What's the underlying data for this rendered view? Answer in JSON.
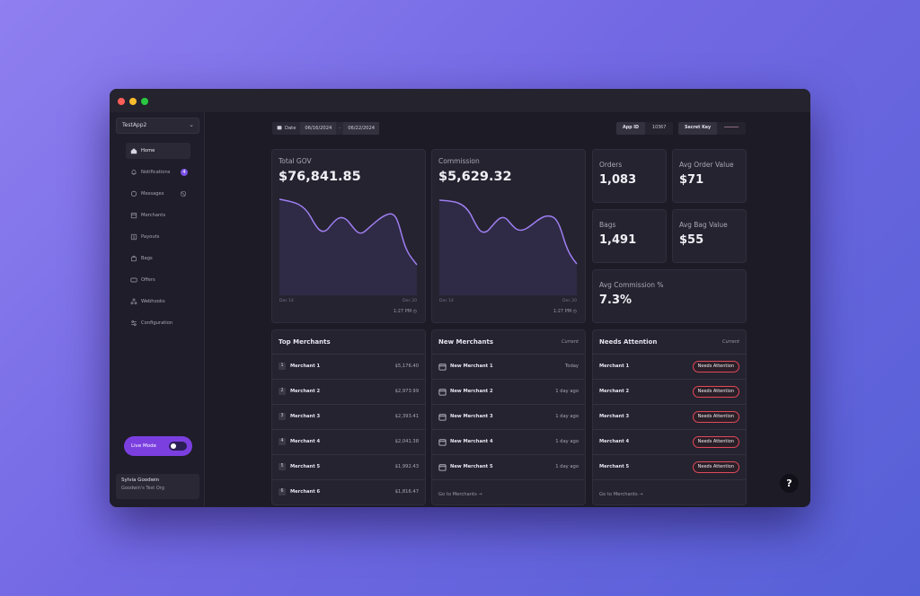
{
  "app_select": {
    "value": "TestApp2"
  },
  "nav": {
    "home": "Home",
    "notifications": "Notifications",
    "notifications_badge": "4",
    "messages": "Messages",
    "merchants": "Merchants",
    "payouts": "Payouts",
    "bags": "Bags",
    "offers": "Offers",
    "webhooks": "Webhooks",
    "configuration": "Configuration"
  },
  "live_mode": {
    "label": "Live Mode",
    "on": false
  },
  "user": {
    "name": "Sylvia Goodwin",
    "org": "Goodwin's Test Org"
  },
  "date_filter": {
    "label": "Date",
    "from": "06/16/2024",
    "separator": "-",
    "to": "06/22/2024"
  },
  "app_id": {
    "label": "App ID",
    "value": "10367"
  },
  "secret_key": {
    "label": "Secret Key"
  },
  "total_gov": {
    "title": "Total GOV",
    "value": "$76,841.85",
    "x_start": "Dec 14",
    "x_end": "Dec 20",
    "updated": "1:27 PM"
  },
  "commission": {
    "title": "Commission",
    "value": "$5,629.32",
    "x_start": "Dec 14",
    "x_end": "Dec 20",
    "updated": "1:27 PM"
  },
  "stats": {
    "orders": {
      "title": "Orders",
      "value": "1,083"
    },
    "avg_order": {
      "title": "Avg Order Value",
      "value": "$71"
    },
    "bags": {
      "title": "Bags",
      "value": "1,491"
    },
    "avg_bag": {
      "title": "Avg Bag Value",
      "value": "$55"
    },
    "avg_commission": {
      "title": "Avg Commission %",
      "value": "7.3%"
    }
  },
  "top_merchants": {
    "title": "Top Merchants",
    "rows": [
      {
        "rank": "1",
        "name": "Merchant 1",
        "amount": "$5,176.40"
      },
      {
        "rank": "2",
        "name": "Merchant 2",
        "amount": "$2,973.99"
      },
      {
        "rank": "3",
        "name": "Merchant 3",
        "amount": "$2,393.41"
      },
      {
        "rank": "4",
        "name": "Merchant 4",
        "amount": "$2,041.38"
      },
      {
        "rank": "5",
        "name": "Merchant 5",
        "amount": "$1,992.43"
      },
      {
        "rank": "6",
        "name": "Merchant 6",
        "amount": "$1,816.47"
      }
    ]
  },
  "new_merchants": {
    "title": "New Merchants",
    "tag": "Current",
    "rows": [
      {
        "name": "New Merchant 1",
        "when": "Today"
      },
      {
        "name": "New Merchant 2",
        "when": "1 day ago"
      },
      {
        "name": "New Merchant 3",
        "when": "1 day ago"
      },
      {
        "name": "New Merchant 4",
        "when": "1 day ago"
      },
      {
        "name": "New Merchant 5",
        "when": "1 day ago"
      }
    ],
    "link": "Go to Merchants →"
  },
  "needs_attention": {
    "title": "Needs Attention",
    "tag": "Current",
    "rows": [
      {
        "name": "Merchant 1",
        "status": "Needs Attention"
      },
      {
        "name": "Merchant 2",
        "status": "Needs Attention"
      },
      {
        "name": "Merchant 3",
        "status": "Needs Attention"
      },
      {
        "name": "Merchant 4",
        "status": "Needs Attention"
      },
      {
        "name": "Merchant 5",
        "status": "Needs Attention"
      }
    ],
    "link": "Go to Merchants →"
  },
  "help": {
    "label": "?"
  },
  "colors": {
    "accent": "#7b3fe0",
    "chart_line": "#9d7ef0",
    "alert": "#e0485b"
  }
}
